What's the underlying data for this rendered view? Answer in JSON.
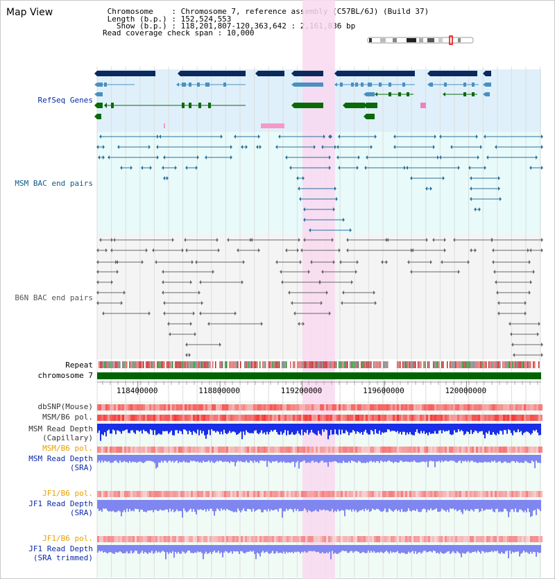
{
  "header": {
    "title": "Map View",
    "info_lines": [
      " Chromosome    : Chromosome 7, reference assembly (C57BL/6J) (Build 37)",
      " Length (b.p.) : 152,524,553",
      "   Show (b.p.) : 118,201,807-120,363,642 : 2,161,836 bp",
      "Read coverage check span : 10,000"
    ]
  },
  "tracks": {
    "refseq_label": "RefSeq Genes",
    "msm_bac_label": "MSM BAC end pairs",
    "b6n_bac_label": "B6N BAC end pairs",
    "repeat_label": "Repeat",
    "chromosome_label": "chromosome 7",
    "dbsnp_label": "dbSNP(Mouse)",
    "msm_b6_pol_label": "MSM/B6 pol.",
    "msm_depth_cap_label_1": "MSM Read Depth",
    "msm_depth_cap_label_2": "(Capillary)",
    "msm_b6_pol2_label": "MSM/B6 pol.",
    "msm_depth_sra_label_1": "MSM Read Depth",
    "msm_depth_sra_label_2": "(SRA)",
    "jf1_b6_pol_label": "JF1/B6 pol.",
    "jf1_depth_sra_label_1": "JF1 Read Depth",
    "jf1_depth_sra_label_2": "(SRA)",
    "jf1_b6_pol2_label": "JF1/B6 pol.",
    "jf1_depth_trim_label_1": "JF1 Read Depth",
    "jf1_depth_trim_label_2": "(SRA trimmed)"
  },
  "axis": {
    "ticks": [
      "118400000",
      "118800000",
      "119200000",
      "119600000",
      "120000000"
    ],
    "tick_values": [
      118400000,
      118800000,
      119200000,
      119600000,
      120000000
    ],
    "range_start": 118201807,
    "range_end": 120363642
  },
  "highlight": {
    "start": 119201807,
    "end": 119360000,
    "color": "#f9d8f0"
  },
  "colors": {
    "refseq_dark": "#0b2a5c",
    "refseq_mid": "#4a90c0",
    "refseq_green": "#0a6a0a",
    "msm_bac": "#2a6f9a",
    "b6n_bac": "#666666",
    "chromosome": "#006400",
    "depth_blue": "#1a2ee8",
    "depth_light": "#7f86f0",
    "pol_red": "#e83030",
    "pol_orange_label": "#e8a000",
    "label_blue": "#0a2aa8",
    "label_teal": "#0a5a8a"
  }
}
